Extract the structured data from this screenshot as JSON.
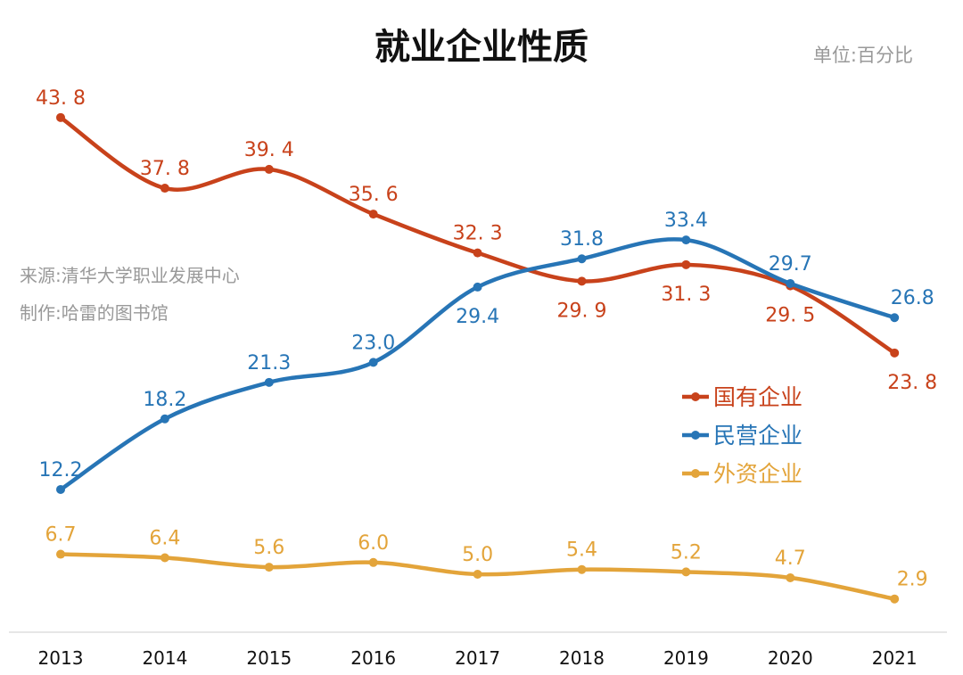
{
  "title": "就业企业性质",
  "unit": "单位:百分比",
  "source_lines": [
    "来源:清华大学职业发展中心",
    "制作:哈雷的图书馆"
  ],
  "chart_data": {
    "type": "line",
    "title": "就业企业性质",
    "categories": [
      "2013",
      "2014",
      "2015",
      "2016",
      "2017",
      "2018",
      "2019",
      "2020",
      "2021"
    ],
    "ylim": [
      0,
      47
    ],
    "grid": false,
    "legend": "right",
    "series": [
      {
        "name": "国有企业",
        "color": "#C8421B",
        "values": [
          43.8,
          37.8,
          39.4,
          35.6,
          32.3,
          29.9,
          31.3,
          29.5,
          23.8
        ],
        "label_texts": [
          "43. 8",
          "37. 8",
          "39. 4",
          "35. 6",
          "32. 3",
          "29. 9",
          "31. 3",
          "29. 5",
          "23. 8"
        ]
      },
      {
        "name": "民营企业",
        "color": "#2775B6",
        "values": [
          12.2,
          18.2,
          21.3,
          23.0,
          29.4,
          31.8,
          33.4,
          29.7,
          26.8
        ],
        "label_texts": [
          "12.2",
          "18.2",
          "21.3",
          "23.0",
          "29.4",
          "31.8",
          "33.4",
          "29.7",
          "26.8"
        ]
      },
      {
        "name": "外资企业",
        "color": "#E3A43A",
        "values": [
          6.7,
          6.4,
          5.6,
          6.0,
          5.0,
          5.4,
          5.2,
          4.7,
          2.9
        ],
        "label_texts": [
          "6.7",
          "6.4",
          "5.6",
          "6.0",
          "5.0",
          "5.4",
          "5.2",
          "4.7",
          "2.9"
        ]
      }
    ]
  }
}
